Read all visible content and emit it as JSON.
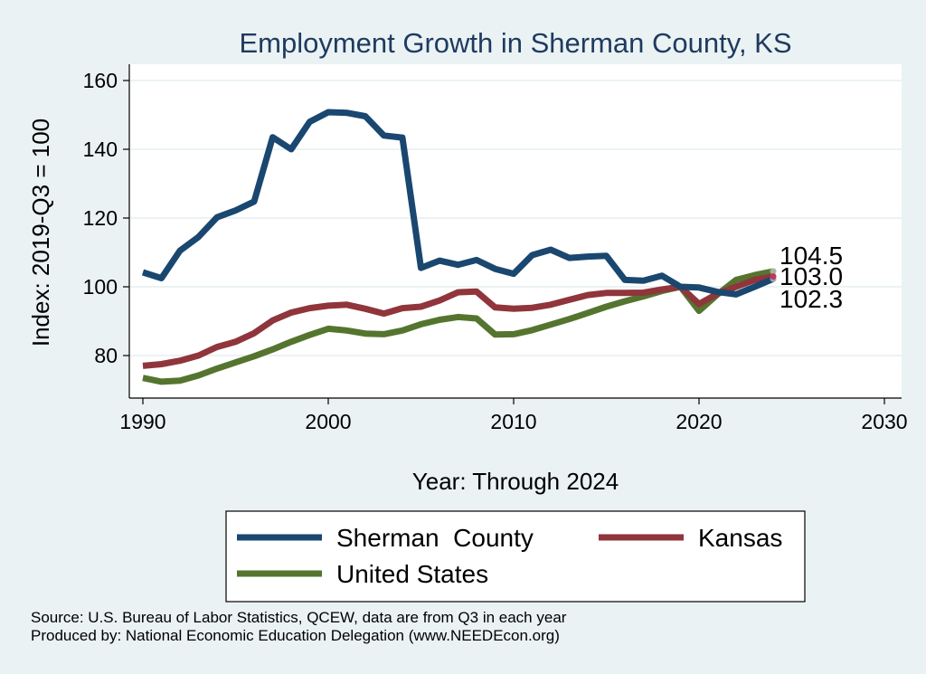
{
  "chart_data": {
    "type": "line",
    "title": "Employment Growth in Sherman County, KS",
    "xlabel": "Year: Through 2024",
    "ylabel": "Index: 2019-Q3 = 100",
    "xlim": [
      1990,
      2030
    ],
    "ylim": [
      70,
      165
    ],
    "xticks": [
      "1990",
      "2000",
      "2010",
      "2020",
      "2030"
    ],
    "yticks": [
      "80",
      "100",
      "120",
      "140",
      "160"
    ],
    "grid": true,
    "x": [
      1990,
      1991,
      1992,
      1993,
      1994,
      1995,
      1996,
      1997,
      1998,
      1999,
      2000,
      2001,
      2002,
      2003,
      2004,
      2005,
      2006,
      2007,
      2008,
      2009,
      2010,
      2011,
      2012,
      2013,
      2014,
      2015,
      2016,
      2017,
      2018,
      2019,
      2020,
      2021,
      2022,
      2023,
      2024
    ],
    "series": [
      {
        "name": "Sherman  County",
        "color": "#1a476f",
        "values": [
          104.2,
          102.5,
          110.5,
          114.5,
          120.2,
          122.2,
          124.8,
          143.5,
          140.0,
          148.0,
          150.8,
          150.6,
          149.6,
          144.0,
          143.4,
          105.5,
          107.6,
          106.4,
          107.8,
          105.2,
          103.8,
          109.2,
          110.8,
          108.4,
          108.8,
          109.0,
          102.0,
          101.8,
          103.2,
          100.0,
          99.8,
          98.5,
          97.8,
          100.0,
          102.3
        ],
        "end_label": "102.3"
      },
      {
        "name": "Kansas",
        "color": "#90353b",
        "values": [
          77.0,
          77.5,
          78.5,
          80.0,
          82.5,
          84.0,
          86.5,
          90.2,
          92.5,
          93.8,
          94.5,
          94.8,
          93.6,
          92.2,
          93.8,
          94.2,
          96.0,
          98.4,
          98.6,
          94.0,
          93.6,
          93.9,
          94.8,
          96.2,
          97.6,
          98.2,
          98.2,
          98.3,
          99.2,
          100.0,
          95.0,
          98.0,
          100.0,
          102.0,
          103.0
        ],
        "end_label": "103.0"
      },
      {
        "name": "United States",
        "color": "#55752f",
        "values": [
          73.5,
          72.4,
          72.7,
          74.2,
          76.2,
          78.0,
          79.8,
          81.8,
          84.0,
          86.0,
          87.8,
          87.3,
          86.4,
          86.2,
          87.3,
          89.1,
          90.4,
          91.2,
          90.8,
          86.1,
          86.2,
          87.4,
          89.0,
          90.6,
          92.4,
          94.2,
          95.8,
          97.2,
          98.8,
          100.0,
          93.0,
          97.8,
          102.0,
          103.4,
          104.5
        ],
        "end_label": "104.5"
      }
    ]
  },
  "legend": {
    "items": [
      {
        "label": "Sherman  County",
        "color": "#1a476f"
      },
      {
        "label": "Kansas",
        "color": "#90353b"
      },
      {
        "label": "United States",
        "color": "#55752f"
      }
    ]
  },
  "footer": {
    "source": "Source: U.S. Bureau of Labor Statistics, QCEW, data are from Q3 in each year",
    "producer": "Produced by: National Economic Education Delegation (www.NEEDEcon.org)"
  }
}
